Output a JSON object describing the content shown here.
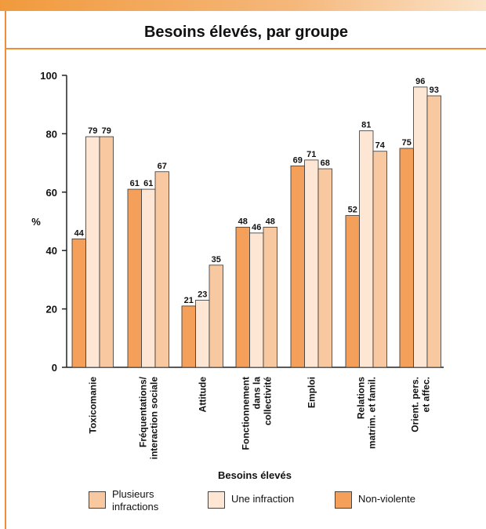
{
  "chart_data": {
    "type": "bar",
    "title": "Besoins élevés, par groupe",
    "xlabel": "Besoins élevés",
    "ylabel": "%",
    "ylim": [
      0,
      100
    ],
    "yticks": [
      "0",
      "20",
      "40",
      "60",
      "80",
      "100"
    ],
    "grid": false,
    "legend_position": "bottom",
    "categories": [
      [
        "Toxicomanie"
      ],
      [
        "Fréquentations/",
        "interaction sociale"
      ],
      [
        "Attitude"
      ],
      [
        "Fonctionnement",
        "dans la",
        "collectivité"
      ],
      [
        "Emploi"
      ],
      [
        "Relations",
        "matrim. et famil."
      ],
      [
        "Orient. pers.",
        "et affec."
      ]
    ],
    "series": [
      {
        "name": "Non-violente",
        "color": "#f4a05a",
        "values": [
          44,
          61,
          21,
          48,
          69,
          52,
          75
        ]
      },
      {
        "name": "Une infraction",
        "color": "#fde6d3",
        "values": [
          79,
          61,
          23,
          46,
          71,
          81,
          96
        ]
      },
      {
        "name": "Plusieurs infractions",
        "color": "#f8c9a1",
        "values": [
          79,
          67,
          35,
          48,
          68,
          74,
          93
        ]
      }
    ],
    "legend": [
      {
        "label_lines": [
          "Plusieurs",
          "infractions"
        ],
        "color": "#f8c9a1"
      },
      {
        "label_lines": [
          "Une infraction"
        ],
        "color": "#fde6d3"
      },
      {
        "label_lines": [
          "Non-violente"
        ],
        "color": "#f4a05a"
      }
    ]
  }
}
